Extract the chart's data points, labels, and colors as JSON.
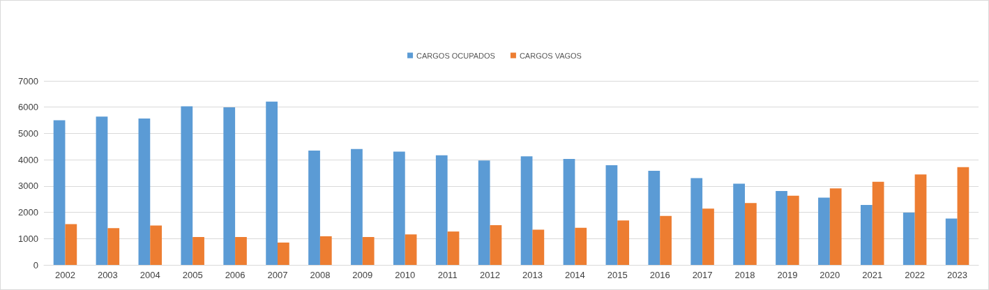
{
  "chart_data": {
    "type": "bar",
    "categories": [
      "2002",
      "2003",
      "2004",
      "2005",
      "2006",
      "2007",
      "2008",
      "2009",
      "2010",
      "2011",
      "2012",
      "2013",
      "2014",
      "2015",
      "2016",
      "2017",
      "2018",
      "2019",
      "2020",
      "2021",
      "2022",
      "2023"
    ],
    "series": [
      {
        "name": "CARGOS OCUPADOS",
        "color": "#5b9bd5",
        "values": [
          5500,
          5640,
          5570,
          6030,
          5990,
          6210,
          4350,
          4410,
          4310,
          4170,
          3970,
          4130,
          4030,
          3790,
          3580,
          3300,
          3090,
          2810,
          2560,
          2280,
          1990,
          1760
        ]
      },
      {
        "name": "CARGOS VAGOS",
        "color": "#ed7d31",
        "values": [
          1550,
          1400,
          1500,
          1060,
          1060,
          850,
          1090,
          1060,
          1160,
          1270,
          1510,
          1340,
          1410,
          1690,
          1860,
          2140,
          2350,
          2630,
          2910,
          3160,
          3440,
          3720
        ]
      }
    ],
    "ylim": [
      0,
      7000
    ],
    "yticks": [
      0,
      1000,
      2000,
      3000,
      4000,
      5000,
      6000,
      7000
    ],
    "grid": "y",
    "legend": "top"
  }
}
